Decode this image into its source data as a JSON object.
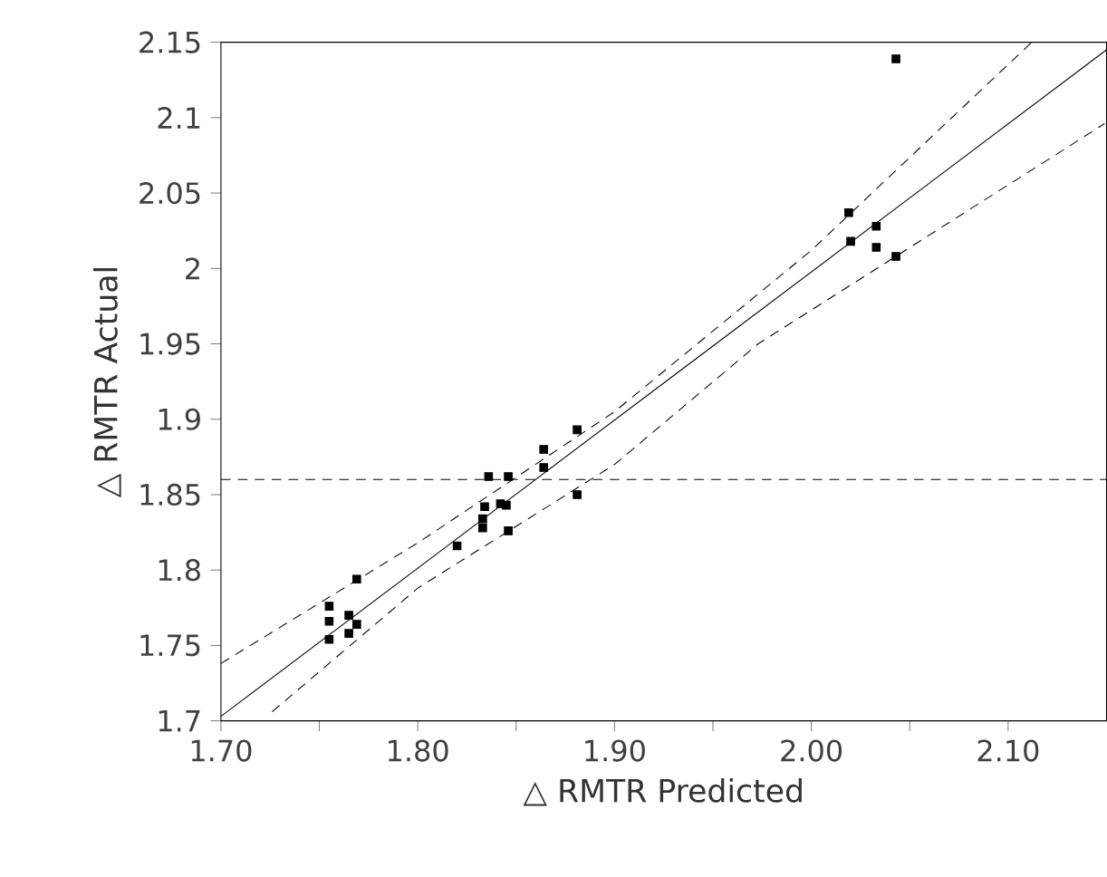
{
  "chart_data": {
    "type": "scatter",
    "xlabel": "△ RMTR Predicted",
    "ylabel": "△ RMTR Actual",
    "xlim": [
      1.7,
      2.15
    ],
    "ylim": [
      1.7,
      2.15
    ],
    "xticks": [
      {
        "value": 1.7,
        "label": "1.70"
      },
      {
        "value": 1.75,
        "label": null
      },
      {
        "value": 1.8,
        "label": "1.80"
      },
      {
        "value": 1.85,
        "label": null
      },
      {
        "value": 1.9,
        "label": "1.90"
      },
      {
        "value": 1.95,
        "label": null
      },
      {
        "value": 2.0,
        "label": "2.00"
      },
      {
        "value": 2.05,
        "label": null
      },
      {
        "value": 2.1,
        "label": "2.10"
      }
    ],
    "yticks": [
      1.7,
      1.75,
      1.8,
      1.85,
      1.9,
      1.95,
      2,
      2.05,
      2.1,
      2.15
    ],
    "grid": false,
    "ref_lines": [
      {
        "axis": "y",
        "value": 1.86,
        "color": "#000000",
        "line_style": "dashed"
      }
    ],
    "series": [
      {
        "color": "#000000",
        "marker": "square",
        "x": [
          1.755,
          1.755,
          1.755,
          1.769,
          1.765,
          1.769,
          1.765,
          1.82,
          1.833,
          1.834,
          1.842,
          1.845,
          1.836,
          1.846,
          1.846,
          1.833,
          1.864,
          1.864,
          1.881,
          1.881,
          2.043,
          2.019,
          2.02,
          2.033,
          2.033,
          2.043
        ],
        "values": [
          1.754,
          1.766,
          1.776,
          1.794,
          1.77,
          1.764,
          1.758,
          1.816,
          1.834,
          1.842,
          1.844,
          1.843,
          1.862,
          1.862,
          1.826,
          1.828,
          1.88,
          1.868,
          1.893,
          1.85,
          2.139,
          2.037,
          2.018,
          2.028,
          2.014,
          2.008
        ]
      },
      {
        "type": "line",
        "color": "#000000",
        "line_style": "solid",
        "marker": "none",
        "x": [
          1.7,
          2.15
        ],
        "values": [
          1.703,
          2.145
        ]
      },
      {
        "type": "line",
        "color": "#000000",
        "line_style": "dashed",
        "marker": "none",
        "x": [
          1.7,
          1.8,
          1.9,
          2.0,
          2.112
        ],
        "values": [
          1.738,
          1.818,
          1.905,
          2.012,
          2.15
        ]
      },
      {
        "type": "line",
        "color": "#000000",
        "line_style": "dashed",
        "marker": "none",
        "x": [
          1.726,
          1.8,
          1.9,
          1.973,
          2.149
        ],
        "values": [
          1.706,
          1.788,
          1.87,
          1.95,
          2.096
        ]
      }
    ]
  }
}
